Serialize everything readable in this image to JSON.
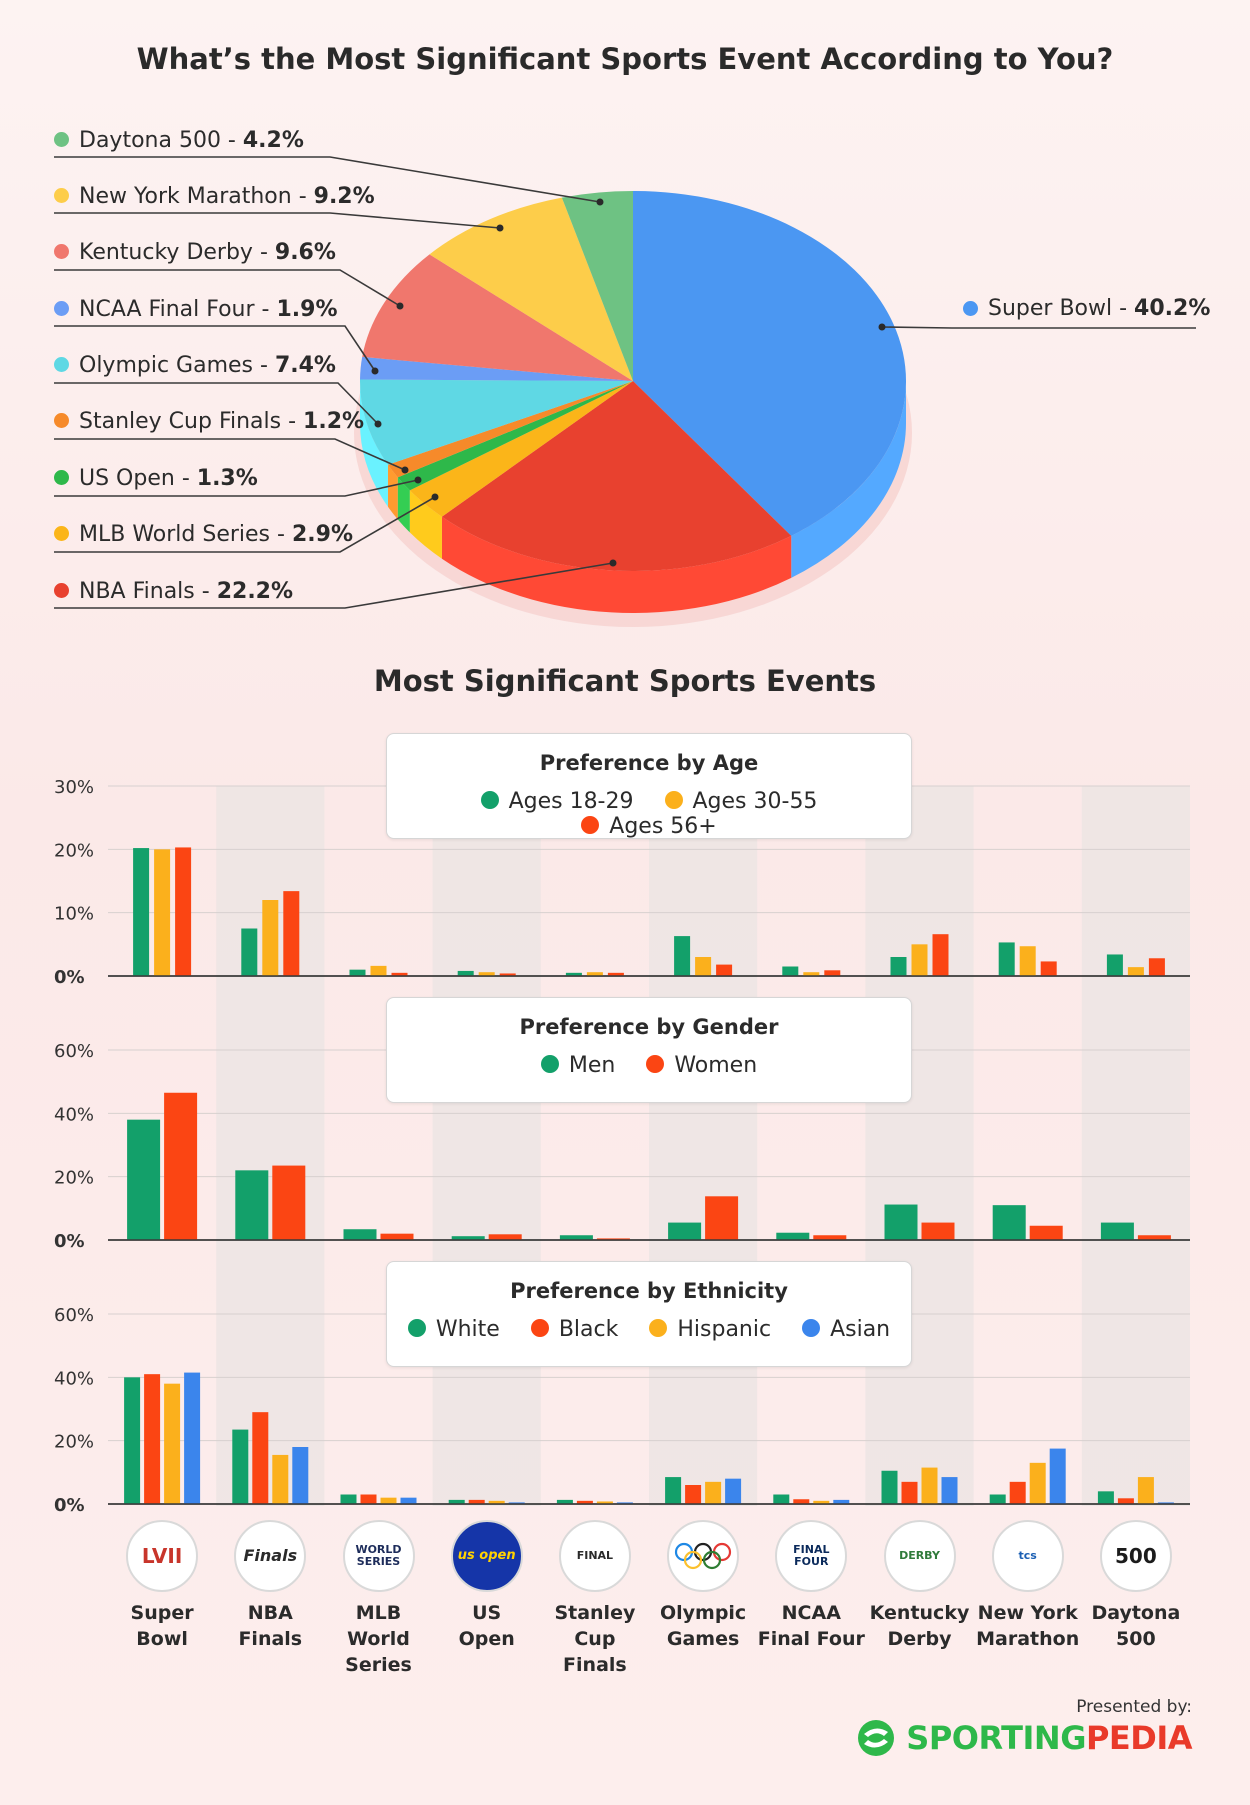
{
  "pie_title": "What’s the Most Significant Sports Event According to You?",
  "bars_title": "Most Significant Sports Events",
  "pie_legend": [
    {
      "name": "Daytona 500",
      "sep": " - ",
      "pct": "4.2%",
      "color": "#6ec283"
    },
    {
      "name": "New York Marathon",
      "sep": " - ",
      "pct": "9.2%",
      "color": "#fdcd4a"
    },
    {
      "name": "Kentucky Derby",
      "sep": " - ",
      "pct": "9.6%",
      "color": "#f0776d"
    },
    {
      "name": "NCAA Final Four",
      "sep": " - ",
      "pct": "1.9%",
      "color": "#6b9df5"
    },
    {
      "name": "Olympic Games",
      "sep": " - ",
      "pct": "7.4%",
      "color": "#5fd8e4"
    },
    {
      "name": "Stanley Cup Finals",
      "sep": " - ",
      "pct": "1.2%",
      "color": "#f68a2a"
    },
    {
      "name": "US Open",
      "sep": " - ",
      "pct": "1.3%",
      "color": "#2eb84a"
    },
    {
      "name": "MLB World Series",
      "sep": " - ",
      "pct": "2.9%",
      "color": "#fbb519"
    },
    {
      "name": "NBA Finals",
      "sep": " - ",
      "pct": "22.2%",
      "color": "#e8412f"
    }
  ],
  "super_bowl_label": {
    "name": "Super Bowl",
    "sep": " - ",
    "pct": "40.2%",
    "color": "#4b97f2"
  },
  "legends": {
    "age": {
      "title": "Preference by Age",
      "items": [
        "Ages 18-29",
        "Ages 30-55",
        "Ages 56+"
      ]
    },
    "gender": {
      "title": "Preference by Gender",
      "items": [
        "Men",
        "Women"
      ]
    },
    "ethnicity": {
      "title": "Preference by Ethnicity",
      "items": [
        "White",
        "Black",
        "Hispanic",
        "Asian"
      ]
    }
  },
  "events": [
    {
      "line1": "Super",
      "line2": "Bowl",
      "logo": "LVII"
    },
    {
      "line1": "NBA",
      "line2": "Finals",
      "logo": "Finals"
    },
    {
      "line1": "MLB World",
      "line2": "Series",
      "logo": "WORLD SERIES"
    },
    {
      "line1": "US",
      "line2": "Open",
      "logo": "us open"
    },
    {
      "line1": "Stanley",
      "line2": "Cup Finals",
      "logo": "FINAL"
    },
    {
      "line1": "Olympic",
      "line2": "Games",
      "logo": "rings"
    },
    {
      "line1": "NCAA",
      "line2": "Final Four",
      "logo": "FINAL FOUR"
    },
    {
      "line1": "Kentucky",
      "line2": "Derby",
      "logo": "DERBY"
    },
    {
      "line1": "New York",
      "line2": "Marathon",
      "logo": "tcs"
    },
    {
      "line1": "Daytona",
      "line2": "500",
      "logo": "500"
    }
  ],
  "footer": {
    "presented": "Presented by:",
    "brand1": "SPORTING",
    "brand2": "PEDIA"
  },
  "chart_data": [
    {
      "type": "pie",
      "title": "What’s the Most Significant Sports Event According to You?",
      "categories": [
        "Super Bowl",
        "NBA Finals",
        "MLB World Series",
        "US Open",
        "Stanley Cup Finals",
        "Olympic Games",
        "NCAA Final Four",
        "Kentucky Derby",
        "New York Marathon",
        "Daytona 500"
      ],
      "values": [
        40.2,
        22.2,
        2.9,
        1.3,
        1.2,
        7.4,
        1.9,
        9.6,
        9.2,
        4.2
      ],
      "colors": [
        "#4b97f2",
        "#e8412f",
        "#fbb519",
        "#2eb84a",
        "#f68a2a",
        "#5fd8e4",
        "#6b9df5",
        "#f0776d",
        "#fdcd4a",
        "#6ec283"
      ]
    },
    {
      "type": "bar",
      "title": "Preference by Age",
      "categories": [
        "Super Bowl",
        "NBA Finals",
        "MLB World Series",
        "US Open",
        "Stanley Cup Finals",
        "Olympic Games",
        "NCAA Final Four",
        "Kentucky Derby",
        "New York Marathon",
        "Daytona 500"
      ],
      "series": [
        {
          "name": "Ages 18-29",
          "color": "#13a06a",
          "values": [
            20.2,
            7.5,
            1.0,
            0.8,
            0.5,
            6.3,
            1.5,
            3.0,
            5.3,
            3.4
          ]
        },
        {
          "name": "Ages 30-55",
          "color": "#fbb01c",
          "values": [
            20.0,
            12.0,
            1.6,
            0.6,
            0.6,
            3.0,
            0.6,
            5.0,
            4.7,
            1.4
          ]
        },
        {
          "name": "Ages 56+",
          "color": "#fb4513",
          "values": [
            20.3,
            13.4,
            0.5,
            0.4,
            0.5,
            1.8,
            0.9,
            6.6,
            2.3,
            2.8
          ]
        }
      ],
      "ylim": [
        0,
        30
      ],
      "yticks": [
        "0%",
        "10%",
        "20%",
        "30%"
      ]
    },
    {
      "type": "bar",
      "title": "Preference by Gender",
      "categories": [
        "Super Bowl",
        "NBA Finals",
        "MLB World Series",
        "US Open",
        "Stanley Cup Finals",
        "Olympic Games",
        "NCAA Final Four",
        "Kentucky Derby",
        "New York Marathon",
        "Daytona 500"
      ],
      "series": [
        {
          "name": "Men",
          "color": "#13a06a",
          "values": [
            38.0,
            22.0,
            3.4,
            1.2,
            1.5,
            5.5,
            2.3,
            11.2,
            11.0,
            5.5
          ]
        },
        {
          "name": "Women",
          "color": "#fb4513",
          "values": [
            46.5,
            23.5,
            2.0,
            1.8,
            0.5,
            13.8,
            1.5,
            5.5,
            4.5,
            1.5
          ]
        }
      ],
      "ylim": [
        0,
        60
      ],
      "yticks": [
        "0%",
        "20%",
        "40%",
        "60%"
      ]
    },
    {
      "type": "bar",
      "title": "Preference by Ethnicity",
      "categories": [
        "Super Bowl",
        "NBA Finals",
        "MLB World Series",
        "US Open",
        "Stanley Cup Finals",
        "Olympic Games",
        "NCAA Final Four",
        "Kentucky Derby",
        "New York Marathon",
        "Daytona 500"
      ],
      "series": [
        {
          "name": "White",
          "color": "#13a06a",
          "values": [
            40.0,
            23.5,
            3.0,
            1.3,
            1.3,
            8.5,
            3.0,
            10.5,
            3.0,
            4.0
          ]
        },
        {
          "name": "Black",
          "color": "#fb4513",
          "values": [
            41.0,
            29.0,
            3.0,
            1.3,
            1.0,
            6.0,
            1.5,
            7.0,
            7.0,
            1.8
          ]
        },
        {
          "name": "Hispanic",
          "color": "#fbb01c",
          "values": [
            38.0,
            15.5,
            2.0,
            1.0,
            0.8,
            7.0,
            1.0,
            11.5,
            13.0,
            8.5
          ]
        },
        {
          "name": "Asian",
          "color": "#3b85ec",
          "values": [
            41.5,
            18.0,
            2.0,
            0.5,
            0.5,
            8.0,
            1.3,
            8.5,
            17.5,
            0.5
          ]
        }
      ],
      "ylim": [
        0,
        60
      ],
      "yticks": [
        "0%",
        "20%",
        "40%",
        "60%"
      ]
    }
  ]
}
